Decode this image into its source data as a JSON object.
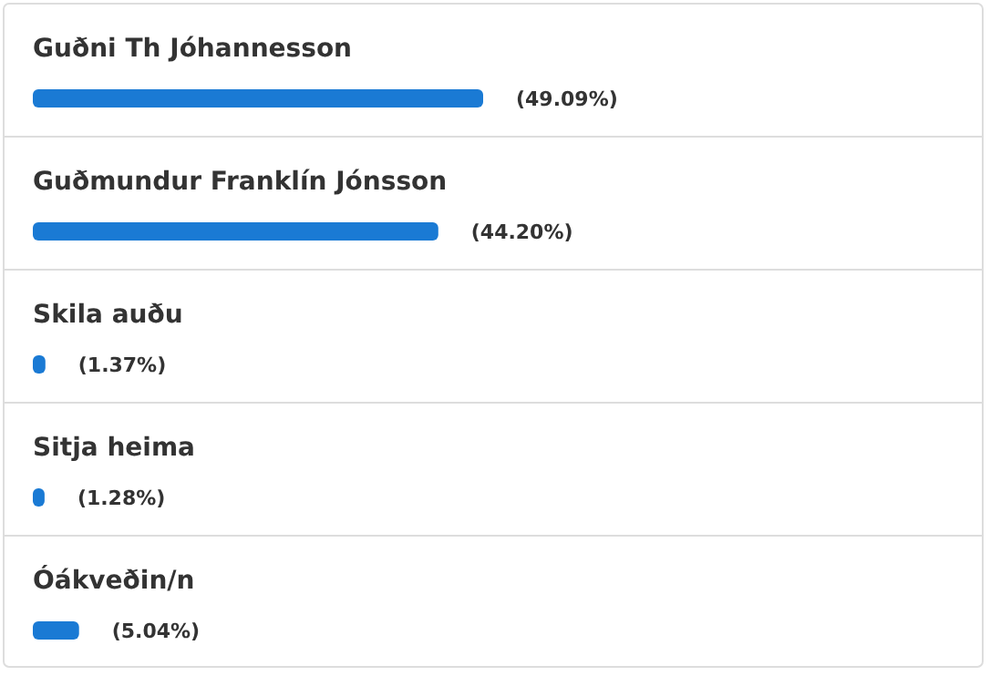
{
  "chart_data": {
    "type": "bar",
    "orientation": "horizontal",
    "categories": [
      "Guðni Th Jóhannesson",
      "Guðmundur Franklín Jónsson",
      "Skila auðu",
      "Sitja heima",
      "Óákveðin/n"
    ],
    "values": [
      49.09,
      44.2,
      1.37,
      1.28,
      5.04
    ],
    "value_labels": [
      "(49.09%)",
      "(44.20%)",
      "(1.37%)",
      "(1.28%)",
      "(5.04%)"
    ],
    "color": "#1a7ad4",
    "tick_labels": false
  }
}
